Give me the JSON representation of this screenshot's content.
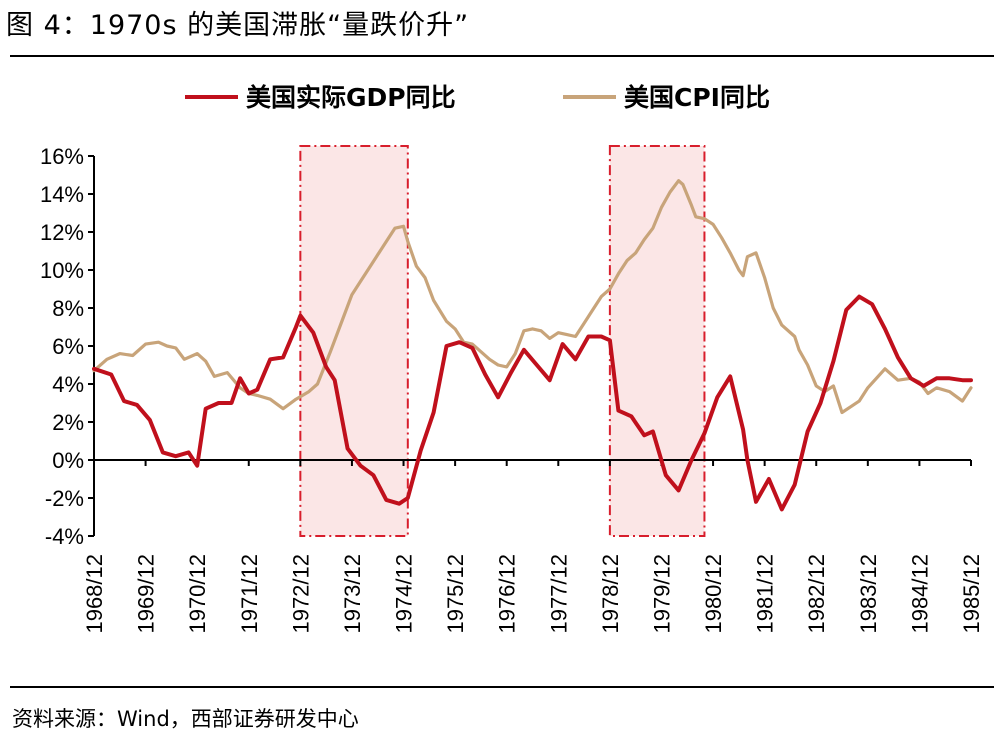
{
  "header": {
    "title": "图 4：1970s 的美国滞胀“量跌价升”"
  },
  "footer": {
    "source": "资料来源：Wind，西部证券研发中心"
  },
  "colors": {
    "gdp": "#c0101c",
    "cpi": "#c8a47a",
    "shade_fill": "#fbe6e6",
    "shade_border": "#d81e2c"
  },
  "chart_data": {
    "type": "line",
    "title": "",
    "xlabel": "",
    "ylabel": "",
    "ylim": [
      -4,
      16
    ],
    "y_ticks": [
      "16%",
      "14%",
      "12%",
      "10%",
      "8%",
      "6%",
      "4%",
      "2%",
      "0%",
      "-2%",
      "-4%"
    ],
    "y_tick_values": [
      16,
      14,
      12,
      10,
      8,
      6,
      4,
      2,
      0,
      -2,
      -4
    ],
    "x_ticks": [
      "1968/12",
      "1969/12",
      "1970/12",
      "1971/12",
      "1972/12",
      "1973/12",
      "1974/12",
      "1975/12",
      "1976/12",
      "1977/12",
      "1978/12",
      "1979/12",
      "1980/12",
      "1981/12",
      "1982/12",
      "1983/12",
      "1984/12",
      "1985/12"
    ],
    "x_range": [
      1968.917,
      1985.917
    ],
    "legend_position": "top",
    "shaded_periods": [
      {
        "start": 1972.917,
        "end": 1975.0
      },
      {
        "start": 1978.917,
        "end": 1980.75
      }
    ],
    "series": [
      {
        "name": "美国实际GDP同比",
        "color": "#c0101c",
        "x": [
          1968.917,
          1969.25,
          1969.5,
          1969.75,
          1970.0,
          1970.25,
          1970.5,
          1970.75,
          1970.917,
          1971.083,
          1971.333,
          1971.583,
          1971.75,
          1971.917,
          1972.083,
          1972.333,
          1972.583,
          1972.833,
          1972.917,
          1973.167,
          1973.417,
          1973.583,
          1973.833,
          1974.083,
          1974.333,
          1974.583,
          1974.833,
          1975.0,
          1975.25,
          1975.5,
          1975.75,
          1976.0,
          1976.25,
          1976.5,
          1976.75,
          1977.0,
          1977.25,
          1977.5,
          1977.75,
          1978.0,
          1978.25,
          1978.5,
          1978.75,
          1978.917,
          1979.083,
          1979.333,
          1979.583,
          1979.75,
          1980.0,
          1980.25,
          1980.5,
          1980.75,
          1981.0,
          1981.25,
          1981.5,
          1981.583,
          1981.75,
          1982.0,
          1982.25,
          1982.5,
          1982.75,
          1983.0,
          1983.25,
          1983.5,
          1983.75,
          1984.0,
          1984.25,
          1984.5,
          1984.75,
          1985.0,
          1985.25,
          1985.5,
          1985.75,
          1985.917
        ],
        "y": [
          4.8,
          4.5,
          3.1,
          2.9,
          2.1,
          0.4,
          0.2,
          0.4,
          -0.3,
          2.7,
          3.0,
          3.0,
          4.3,
          3.5,
          3.7,
          5.3,
          5.4,
          7.0,
          7.6,
          6.7,
          4.9,
          4.2,
          0.6,
          -0.3,
          -0.8,
          -2.1,
          -2.3,
          -2.0,
          0.5,
          2.5,
          6.0,
          6.2,
          5.9,
          4.5,
          3.3,
          4.6,
          5.8,
          5.0,
          4.2,
          6.1,
          5.3,
          6.5,
          6.5,
          6.3,
          2.6,
          2.3,
          1.3,
          1.5,
          -0.8,
          -1.6,
          0.0,
          1.4,
          3.3,
          4.4,
          1.6,
          0.0,
          -2.2,
          -1.0,
          -2.6,
          -1.3,
          1.5,
          3.0,
          5.2,
          7.9,
          8.6,
          8.2,
          6.9,
          5.4,
          4.3,
          3.9,
          4.3,
          4.3,
          4.2,
          4.2
        ]
      },
      {
        "name": "美国CPI同比",
        "color": "#c8a47a",
        "x": [
          1968.917,
          1969.167,
          1969.417,
          1969.667,
          1969.917,
          1970.167,
          1970.333,
          1970.5,
          1970.667,
          1970.917,
          1971.083,
          1971.25,
          1971.5,
          1971.75,
          1971.917,
          1972.083,
          1972.333,
          1972.583,
          1972.833,
          1973.083,
          1973.25,
          1973.5,
          1973.75,
          1973.917,
          1974.083,
          1974.25,
          1974.417,
          1974.583,
          1974.75,
          1974.917,
          1975.0,
          1975.167,
          1975.333,
          1975.5,
          1975.75,
          1975.917,
          1976.083,
          1976.25,
          1976.417,
          1976.583,
          1976.75,
          1976.917,
          1977.083,
          1977.25,
          1977.417,
          1977.583,
          1977.75,
          1977.917,
          1978.083,
          1978.25,
          1978.417,
          1978.583,
          1978.75,
          1978.917,
          1979.083,
          1979.25,
          1979.417,
          1979.583,
          1979.75,
          1979.917,
          1980.083,
          1980.25,
          1980.333,
          1980.5,
          1980.583,
          1980.75,
          1980.917,
          1981.083,
          1981.25,
          1981.417,
          1981.5,
          1981.583,
          1981.75,
          1981.917,
          1982.083,
          1982.25,
          1982.5,
          1982.583,
          1982.75,
          1982.917,
          1983.083,
          1983.25,
          1983.417,
          1983.583,
          1983.75,
          1983.917,
          1984.083,
          1984.25,
          1984.5,
          1984.75,
          1984.917,
          1985.083,
          1985.25,
          1985.5,
          1985.75,
          1985.917
        ],
        "y": [
          4.7,
          5.3,
          5.6,
          5.5,
          6.1,
          6.2,
          6.0,
          5.9,
          5.3,
          5.6,
          5.2,
          4.4,
          4.6,
          3.8,
          3.5,
          3.4,
          3.2,
          2.7,
          3.2,
          3.6,
          4.0,
          5.7,
          7.5,
          8.7,
          9.4,
          10.1,
          10.8,
          11.5,
          12.2,
          12.3,
          11.5,
          10.2,
          9.6,
          8.4,
          7.3,
          6.9,
          6.2,
          6.1,
          5.7,
          5.3,
          5.0,
          4.9,
          5.6,
          6.8,
          6.9,
          6.8,
          6.4,
          6.7,
          6.6,
          6.5,
          7.2,
          7.9,
          8.6,
          9.0,
          9.8,
          10.5,
          10.9,
          11.6,
          12.2,
          13.3,
          14.1,
          14.7,
          14.5,
          13.4,
          12.8,
          12.7,
          12.4,
          11.7,
          10.9,
          10.0,
          9.7,
          10.7,
          10.9,
          9.6,
          8.0,
          7.1,
          6.5,
          5.8,
          5.0,
          3.9,
          3.6,
          3.9,
          2.5,
          2.8,
          3.1,
          3.8,
          4.3,
          4.8,
          4.2,
          4.3,
          4.1,
          3.5,
          3.8,
          3.6,
          3.1,
          3.8
        ]
      }
    ]
  }
}
